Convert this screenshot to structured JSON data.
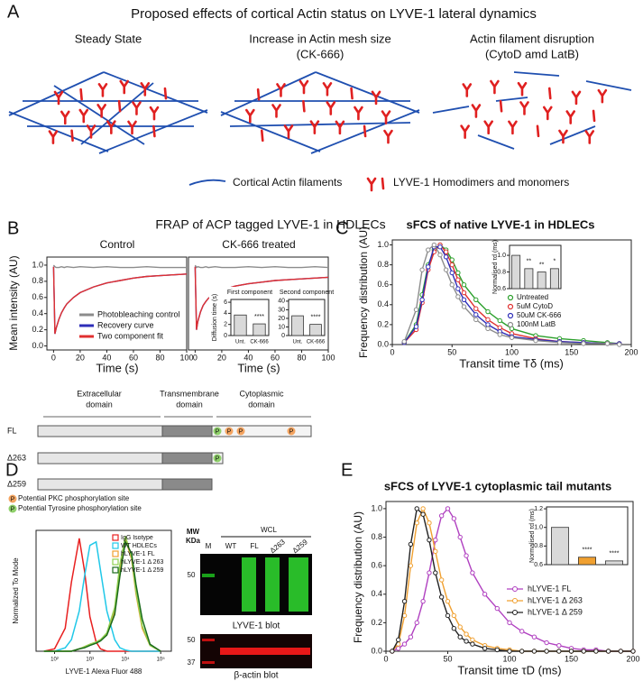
{
  "figure": {
    "panel_a": {
      "label": "A",
      "title": "Proposed effects of cortical Actin status on LYVE-1 lateral dynamics",
      "states": [
        [
          "Steady State"
        ],
        [
          "Increase in Actin mesh size",
          "(CK-666)"
        ],
        [
          "Actin filament disruption",
          "(CytoD amd LatB)"
        ]
      ],
      "legend": [
        "Cortical Actin filaments",
        "LYVE-1 Homodimers and monomers"
      ]
    },
    "panel_b": {
      "label": "B",
      "title": "FRAP of ACP tagged LYVE-1 in HDLECs"
    },
    "panel_c": {
      "label": "C"
    },
    "panel_d": {
      "label": "D",
      "domains": [
        [
          "Extracellular",
          "domain"
        ],
        [
          "Transmembrane",
          "domain"
        ],
        [
          "Cytoplasmic",
          "domain"
        ]
      ],
      "constructs": [
        "FL",
        "Δ263",
        "Δ259"
      ],
      "phospho_mark": "P",
      "site_legend": [
        "Potential PKC phosphorylation site",
        "Potential Tyrosine phosphorylation site"
      ],
      "blot": {
        "mw": [
          "MW",
          "KDa"
        ],
        "group": "WCL",
        "lanes": [
          "M",
          "WT",
          "FL",
          "Δ263",
          "Δ259"
        ],
        "lyve_markers": [
          "50"
        ],
        "lyve_caption": "LYVE-1 blot",
        "actin_markers": [
          "50",
          "37"
        ],
        "actin_caption": "β-actin blot"
      }
    },
    "panel_e": {
      "label": "E"
    }
  },
  "chart_data": [
    {
      "type": "line",
      "title": "Control",
      "ylabel": "Mean intensity (AU)",
      "xlabel": "Time (s)",
      "xlim": [
        -5,
        100
      ],
      "ylim": [
        -0.05,
        1.1
      ],
      "xticks": [
        0,
        20,
        40,
        60,
        80,
        100
      ],
      "yticks": [
        {
          "value": 0,
          "label": "0.0"
        },
        0.2,
        0.4,
        0.6,
        0.8,
        {
          "value": 1,
          "label": "1.0"
        }
      ],
      "x": [
        0,
        1,
        2,
        4,
        6,
        8,
        10,
        15,
        20,
        30,
        40,
        50,
        60,
        70,
        80,
        90,
        100
      ],
      "series": [
        {
          "name": "Photobleaching control",
          "color": "#8c8c8c",
          "values": [
            1.0,
            0.98,
            0.97,
            0.97,
            0.98,
            0.97,
            0.98,
            0.97,
            0.98,
            0.97,
            0.98,
            0.97,
            0.97,
            0.98,
            0.97,
            0.97,
            0.97
          ]
        },
        {
          "name": "Recovery curve",
          "color": "#2e2eb8",
          "values": [
            0.98,
            0.15,
            0.22,
            0.33,
            0.41,
            0.47,
            0.52,
            0.6,
            0.66,
            0.73,
            0.78,
            0.81,
            0.84,
            0.86,
            0.87,
            0.88,
            0.89
          ]
        },
        {
          "name": "Two component fit",
          "color": "#e03030",
          "values": [
            0.98,
            0.15,
            0.22,
            0.33,
            0.41,
            0.47,
            0.52,
            0.6,
            0.66,
            0.73,
            0.78,
            0.81,
            0.84,
            0.86,
            0.87,
            0.88,
            0.89
          ]
        }
      ]
    },
    {
      "type": "line",
      "title": "CK-666 treated",
      "xlabel": "Time (s)",
      "xlim": [
        -5,
        100
      ],
      "ylim": [
        -0.05,
        1.1
      ],
      "xticks": [
        0,
        20,
        40,
        60,
        80,
        100
      ],
      "x": [
        0,
        1,
        2,
        4,
        6,
        8,
        10,
        15,
        20,
        30,
        40,
        50,
        60,
        70,
        80,
        90,
        100
      ],
      "series": [
        {
          "color": "#8c8c8c",
          "values": [
            1.0,
            0.97,
            0.98,
            0.97,
            0.97,
            0.98,
            0.97,
            0.98,
            0.97,
            0.97,
            0.98,
            0.97,
            0.98,
            0.97,
            0.97,
            0.98,
            0.97
          ]
        },
        {
          "color": "#2e2eb8",
          "values": [
            0.98,
            0.2,
            0.3,
            0.42,
            0.5,
            0.55,
            0.59,
            0.65,
            0.69,
            0.74,
            0.77,
            0.79,
            0.81,
            0.82,
            0.83,
            0.84,
            0.85
          ]
        },
        {
          "color": "#e03030",
          "values": [
            0.98,
            0.2,
            0.3,
            0.42,
            0.5,
            0.55,
            0.59,
            0.65,
            0.69,
            0.74,
            0.77,
            0.79,
            0.81,
            0.82,
            0.83,
            0.84,
            0.85
          ]
        }
      ]
    },
    {
      "type": "bar",
      "title": "First component",
      "ylabel": "Diffusion time (s)",
      "categories": [
        "Unt.",
        "CK-666"
      ],
      "values": [
        3.7,
        2.1
      ],
      "colors": [
        "#d9d9d9",
        "#d9d9d9"
      ],
      "ylim": [
        0,
        6.5
      ],
      "yticks": [
        0,
        2,
        4,
        6
      ],
      "stars": [
        null,
        "****"
      ]
    },
    {
      "type": "bar",
      "title": "Second component",
      "categories": [
        "Unt.",
        "CK-666"
      ],
      "values": [
        23,
        13
      ],
      "colors": [
        "#d9d9d9",
        "#d9d9d9"
      ],
      "ylim": [
        0,
        42
      ],
      "yticks": [
        0,
        10,
        20,
        30,
        40
      ],
      "stars": [
        null,
        "****"
      ]
    },
    {
      "type": "line",
      "title": "sFCS of native LYVE-1 in HDLECs",
      "ylabel": "Frequency distribution (AU)",
      "xlabel": "Transit time Tδ (ms)",
      "xlim": [
        0,
        200
      ],
      "ylim": [
        0,
        1.05
      ],
      "xticks": [
        0,
        50,
        100,
        150,
        200
      ],
      "yticks": [
        {
          "value": 0,
          "label": "0.0"
        },
        0.2,
        0.4,
        0.6,
        0.8,
        {
          "value": 1,
          "label": "1.0"
        }
      ],
      "x": [
        10,
        20,
        25,
        30,
        35,
        40,
        45,
        50,
        55,
        60,
        70,
        80,
        90,
        100,
        120,
        140,
        160,
        180,
        190
      ],
      "series": [
        {
          "name": "Untreated",
          "color": "#2ca02c",
          "marker": true,
          "values": [
            0.02,
            0.2,
            0.5,
            0.8,
            0.95,
            1.0,
            0.95,
            0.85,
            0.72,
            0.6,
            0.45,
            0.33,
            0.24,
            0.16,
            0.09,
            0.06,
            0.04,
            0.02,
            0.01
          ]
        },
        {
          "name": "5uM CytoD",
          "color": "#e03030",
          "marker": true,
          "values": [
            0.02,
            0.15,
            0.42,
            0.75,
            0.93,
            1.0,
            0.93,
            0.8,
            0.65,
            0.52,
            0.36,
            0.25,
            0.17,
            0.11,
            0.06,
            0.03,
            0.02,
            0.01,
            0.01
          ]
        },
        {
          "name": "50uM CK-666",
          "color": "#2e2eb8",
          "marker": true,
          "values": [
            0.02,
            0.18,
            0.45,
            0.78,
            0.98,
            0.98,
            0.88,
            0.72,
            0.56,
            0.45,
            0.3,
            0.2,
            0.13,
            0.08,
            0.05,
            0.03,
            0.02,
            0.01,
            0.01
          ]
        },
        {
          "name": "100nM LatB",
          "color": "#8c8c8c",
          "marker": true,
          "values": [
            0.03,
            0.35,
            0.75,
            0.95,
            1.0,
            0.9,
            0.75,
            0.6,
            0.48,
            0.38,
            0.25,
            0.16,
            0.1,
            0.07,
            0.04,
            0.02,
            0.01,
            0.01,
            0
          ]
        }
      ]
    },
    {
      "type": "bar",
      "ylabel": "Normalised τd (ms)",
      "values": [
        1.0,
        0.84,
        0.8,
        0.84
      ],
      "colors": [
        "#d9d9d9",
        "#d9d9d9",
        "#d9d9d9",
        "#d9d9d9"
      ],
      "ylim": [
        0.6,
        1.12
      ],
      "yticks": [
        0.6,
        0.8,
        {
          "value": 1,
          "label": "1.0"
        }
      ],
      "stars": [
        null,
        "**",
        "**",
        "*"
      ]
    },
    {
      "type": "line",
      "ylabel": "Normalized To Mode",
      "xlabel": "LYVE-1 Alexa Fluor 488",
      "log_x": true,
      "xlim": [
        30,
        200000
      ],
      "ylim": [
        0,
        105
      ],
      "xticks": [
        {
          "value": 100,
          "label": "10²"
        },
        {
          "value": 1000,
          "label": "10³"
        },
        {
          "value": 10000,
          "label": "10⁴"
        },
        {
          "value": 100000,
          "label": "10⁵"
        }
      ],
      "x": [
        50,
        100,
        200,
        300,
        500,
        700,
        1000,
        1500,
        2000,
        3000,
        5000,
        7000,
        10000,
        15000,
        20000,
        30000,
        50000,
        100000
      ],
      "series": [
        {
          "name": "IgG Isotype",
          "color": "#e82020",
          "values": [
            0,
            2,
            20,
            60,
            98,
            70,
            30,
            8,
            2,
            0,
            0,
            0,
            0,
            0,
            0,
            0,
            0,
            0
          ]
        },
        {
          "name": "WT HDLECs",
          "color": "#20c8e8",
          "values": [
            0,
            0,
            3,
            10,
            35,
            65,
            92,
            95,
            70,
            35,
            10,
            3,
            1,
            0,
            0,
            0,
            0,
            0
          ]
        },
        {
          "name": "hLYVE-1 FL",
          "color": "#f0a030",
          "values": [
            0,
            0,
            0,
            0,
            2,
            4,
            6,
            8,
            10,
            15,
            35,
            70,
            98,
            80,
            50,
            20,
            5,
            0
          ]
        },
        {
          "name": "hLYVE-1 Δ 263",
          "color": "#90d050",
          "values": [
            0,
            0,
            0,
            0,
            2,
            4,
            6,
            8,
            10,
            16,
            38,
            75,
            100,
            82,
            52,
            22,
            5,
            0
          ]
        },
        {
          "name": "hLYVE-1 Δ 259",
          "color": "#1a6a1a",
          "values": [
            0,
            0,
            0,
            0,
            2,
            3,
            5,
            7,
            9,
            14,
            32,
            65,
            95,
            85,
            58,
            28,
            6,
            0
          ]
        }
      ]
    },
    {
      "type": "line",
      "title": "sFCS of LYVE-1 cytoplasmic tail mutants",
      "ylabel": "Frequency distribution (AU)",
      "xlabel": "Transit time τD (ms)",
      "xlim": [
        0,
        200
      ],
      "ylim": [
        0,
        1.05
      ],
      "xticks": [
        0,
        50,
        100,
        150,
        200
      ],
      "yticks": [
        {
          "value": 0,
          "label": "0.0"
        },
        0.2,
        0.4,
        0.6,
        0.8,
        {
          "value": 1,
          "label": "1.0"
        }
      ],
      "x": [
        5,
        10,
        15,
        20,
        25,
        30,
        35,
        40,
        45,
        50,
        55,
        60,
        65,
        70,
        80,
        90,
        100,
        110,
        120,
        130,
        140,
        150,
        160,
        170,
        180,
        190,
        200
      ],
      "series": [
        {
          "name": "hLYVE-1 FL",
          "color": "#b040c0",
          "marker": true,
          "values": [
            0,
            0.02,
            0.05,
            0.1,
            0.2,
            0.35,
            0.55,
            0.78,
            0.95,
            1.0,
            0.93,
            0.8,
            0.67,
            0.55,
            0.4,
            0.3,
            0.2,
            0.14,
            0.1,
            0.06,
            0.04,
            0.02,
            0.01,
            0.01,
            0,
            0,
            0
          ]
        },
        {
          "name": "hLYVE-1 Δ 263",
          "color": "#f0a030",
          "marker": true,
          "values": [
            0,
            0.05,
            0.25,
            0.6,
            0.9,
            1.0,
            0.9,
            0.7,
            0.5,
            0.35,
            0.25,
            0.17,
            0.12,
            0.08,
            0.04,
            0.02,
            0.01,
            0,
            0,
            0,
            0,
            0,
            0,
            0,
            0,
            0,
            0
          ]
        },
        {
          "name": "hLYVE-1 Δ 259",
          "color": "#222222",
          "marker": true,
          "values": [
            0,
            0.08,
            0.35,
            0.75,
            1.0,
            0.96,
            0.78,
            0.55,
            0.38,
            0.25,
            0.16,
            0.1,
            0.07,
            0.05,
            0.02,
            0.01,
            0,
            0,
            0,
            0,
            0,
            0,
            0,
            0,
            0,
            0,
            0
          ]
        }
      ]
    },
    {
      "type": "bar",
      "ylabel": "Normalised τd (ms)",
      "values": [
        1.0,
        0.68,
        0.64
      ],
      "colors": [
        "#d9d9d9",
        "#f0a030",
        "#d9d9d9"
      ],
      "ylim": [
        0.6,
        1.22
      ],
      "yticks": [
        0.6,
        0.8,
        {
          "value": 1,
          "label": "1.0"
        },
        {
          "value": 1.2,
          "label": "1.2"
        }
      ],
      "stars": [
        null,
        "****",
        "****"
      ]
    }
  ]
}
